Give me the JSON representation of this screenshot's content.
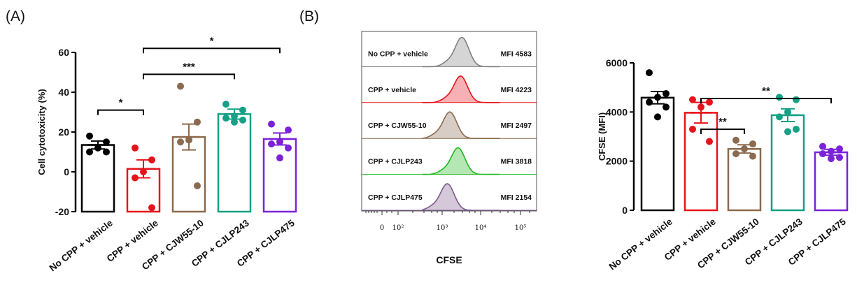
{
  "panels": {
    "a_label": "(A)",
    "b_label": "(B)"
  },
  "chart_data": [
    {
      "id": "cytotoxicity",
      "type": "bar",
      "ylabel": "Cell cytotoxicity (%)",
      "ylim": [
        -20,
        60
      ],
      "yticks": [
        -20,
        0,
        20,
        40,
        60
      ],
      "categories": [
        "No CPP + vehicle",
        "CPP + vehicle",
        "CPP + CJW55-10",
        "CPP + CJLP243",
        "CPP + CJLP475"
      ],
      "colors": [
        "#000000",
        "#e8121a",
        "#8b6a4e",
        "#16a085",
        "#7b22d8"
      ],
      "means": [
        13.5,
        1.5,
        17.5,
        29,
        16.5
      ],
      "sem": [
        2,
        4.5,
        6.5,
        2.5,
        3
      ],
      "points": [
        [
          18,
          15,
          12,
          10,
          10
        ],
        [
          12,
          6,
          0,
          -3,
          -18
        ],
        [
          43,
          25,
          16,
          15,
          -7
        ],
        [
          34,
          31,
          28,
          27,
          26,
          25
        ],
        [
          24,
          21,
          15,
          14,
          12,
          7
        ]
      ],
      "significance": [
        {
          "from": 0,
          "to": 1,
          "y": 31,
          "label": "*"
        },
        {
          "from": 1,
          "to": 3,
          "y": 49,
          "label": "***"
        },
        {
          "from": 1,
          "to": 4,
          "y": 62,
          "label": "*"
        }
      ]
    },
    {
      "id": "histogram",
      "type": "histogram",
      "xlabel": "CFSE",
      "xtick_labels": [
        "0",
        "10²",
        "10³",
        "10⁴",
        "10⁵"
      ],
      "tracks": [
        {
          "label": "No CPP + vehicle",
          "mfi": "MFI 4583",
          "color": "#808080",
          "peak": 3.52
        },
        {
          "label": "CPP + vehicle",
          "mfi": "MFI 4223",
          "color": "#e8121a",
          "peak": 3.49
        },
        {
          "label": "CPP + CJW55-10",
          "mfi": "MFI 2497",
          "color": "#8b6a4e",
          "peak": 3.24
        },
        {
          "label": "CPP + CJLP243",
          "mfi": "MFI 3818",
          "color": "#1fb81f",
          "peak": 3.43
        },
        {
          "label": "CPP + CJLP475",
          "mfi": "MFI 2154",
          "color": "#7d5b8e",
          "peak": 3.18
        }
      ]
    },
    {
      "id": "cfse",
      "type": "bar",
      "ylabel": "CFSE (MFI)",
      "ylim": [
        0,
        6000
      ],
      "yticks": [
        0,
        2000,
        4000,
        6000
      ],
      "categories": [
        "No CPP + vehicle",
        "CPP + vehicle",
        "CPP + CJW55-10",
        "CPP + CJLP243",
        "CPP + CJLP475"
      ],
      "colors": [
        "#000000",
        "#e8121a",
        "#8b6a4e",
        "#16a085",
        "#7b22d8"
      ],
      "means": [
        4583,
        3970,
        2497,
        3870,
        2360
      ],
      "sem": [
        250,
        420,
        170,
        260,
        120
      ],
      "points": [
        [
          5600,
          4750,
          4600,
          4400,
          4200,
          3800
        ],
        [
          4500,
          4400,
          4200,
          3300,
          2800
        ],
        [
          2850,
          2700,
          2500,
          2300,
          2200
        ],
        [
          4600,
          4500,
          4000,
          3800,
          3300,
          3200
        ],
        [
          2600,
          2500,
          2400,
          2300,
          2150,
          2100
        ]
      ],
      "significance": [
        {
          "from": 1,
          "to": 2,
          "y": 3300,
          "label": "**"
        },
        {
          "from": 1,
          "to": 4,
          "y": 4550,
          "label": "**"
        }
      ]
    }
  ]
}
